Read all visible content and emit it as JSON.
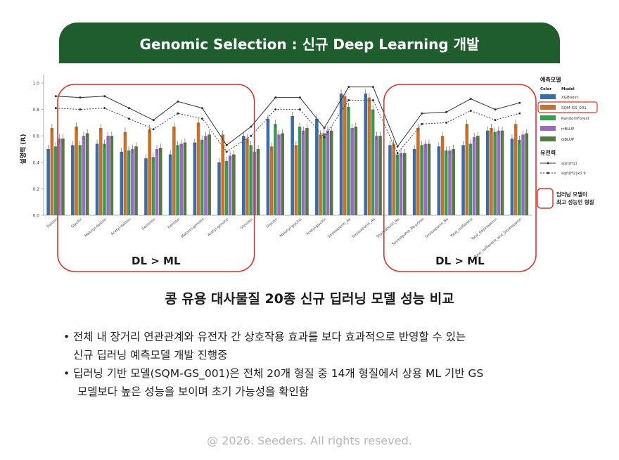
{
  "banner": {
    "title": "Genomic Selection : 신규 Deep Learning 개발"
  },
  "chart_data": {
    "type": "bar",
    "ylabel": "설명력 (R)",
    "ylim": [
      0.0,
      1.0
    ],
    "yticks": [
      "0.0",
      "0.2",
      "0.4",
      "0.6",
      "0.8",
      "1.0"
    ],
    "categories": [
      "Daidzin",
      "Glycitin",
      "Malonyl-daidzin",
      "Acetyl-daidzin",
      "Genistein",
      "Genistin",
      "Malonyl-genistin",
      "Acetyl-genistin",
      "Glycitein",
      "Glycitin",
      "Malonyl-glycitin",
      "Acetyl-glycitin",
      "Soyasaponin_Aa",
      "Soyasaponin_Ab",
      "Soyasaponin_Ba",
      "Soyasaponin_Bb-prime",
      "Soyasaponin_Bb",
      "Total_isoflavone",
      "Total_Soyasaponin",
      "Total_isoflavone_and_Soyasaponin"
    ],
    "series": [
      {
        "name": "XGBoost",
        "color": "#3a6ea5",
        "values": [
          0.5,
          0.53,
          0.54,
          0.48,
          0.43,
          0.46,
          0.55,
          0.4,
          0.6,
          0.73,
          0.75,
          0.73,
          0.92,
          0.92,
          0.53,
          0.5,
          0.52,
          0.53,
          0.64,
          0.58
        ]
      },
      {
        "name": "SQM-GS_001",
        "color": "#c8702e",
        "values": [
          0.66,
          0.67,
          0.66,
          0.63,
          0.65,
          0.67,
          0.7,
          0.61,
          0.58,
          0.52,
          0.53,
          0.61,
          0.9,
          0.89,
          0.54,
          0.66,
          0.6,
          0.69,
          0.66,
          0.69
        ]
      },
      {
        "name": "RandomForest",
        "color": "#3d9a55",
        "values": [
          0.52,
          0.53,
          0.54,
          0.49,
          0.44,
          0.53,
          0.57,
          0.41,
          0.53,
          0.69,
          0.67,
          0.62,
          0.82,
          0.8,
          0.46,
          0.53,
          0.49,
          0.54,
          0.63,
          0.57
        ]
      },
      {
        "name": "rrBLUP",
        "color": "#9b6bc4",
        "values": [
          0.58,
          0.6,
          0.6,
          0.5,
          0.5,
          0.54,
          0.6,
          0.45,
          0.48,
          0.61,
          0.64,
          0.64,
          0.66,
          0.6,
          0.47,
          0.54,
          0.49,
          0.59,
          0.64,
          0.61
        ]
      },
      {
        "name": "GBLUP",
        "color": "#557a48",
        "values": [
          0.58,
          0.62,
          0.6,
          0.52,
          0.51,
          0.55,
          0.61,
          0.46,
          0.5,
          0.62,
          0.66,
          0.64,
          0.67,
          0.6,
          0.47,
          0.54,
          0.5,
          0.6,
          0.64,
          0.62
        ]
      }
    ],
    "heritability": [
      {
        "name": "sqrt(H2)",
        "values": [
          0.9,
          0.89,
          0.9,
          0.81,
          0.72,
          0.86,
          0.81,
          0.53,
          0.67,
          0.89,
          0.89,
          0.66,
          0.97,
          0.97,
          0.52,
          0.77,
          0.78,
          0.88,
          0.8,
          0.85
        ]
      },
      {
        "name": "sqrt(H2)x0.9",
        "values": [
          0.81,
          0.8,
          0.81,
          0.73,
          0.65,
          0.77,
          0.73,
          0.48,
          0.6,
          0.8,
          0.8,
          0.59,
          0.87,
          0.87,
          0.47,
          0.69,
          0.7,
          0.79,
          0.72,
          0.77
        ]
      }
    ],
    "legend": {
      "title": "예측모델",
      "color_header": "Color",
      "model_header": "Model",
      "heritability_title": "유전력",
      "highlight_text_1": "딥러닝 모델이",
      "highlight_text_2": "최고 성능인 형질"
    },
    "annotations": {
      "left_box": "DL > ML",
      "right_box": "DL > ML"
    }
  },
  "caption": "콩 유용 대사물질 20종 신규 딥러닝 모델 성능 비교",
  "bullets": [
    {
      "line1": "전체 내 장거리 연관관계와 유전자 간 상호작용 효과를 보다 효과적으로 반영할 수 있는",
      "line2": "신규 딥러닝 예측모델 개발 진행중"
    },
    {
      "line1": "딥러닝 기반 모델(SQM-GS_001)은 전체 20개 형질 중 14개 형질에서 상용 ML 기반 GS",
      "line2": "모델보다 높은 성능을 보이며 초기 가능성을 확인함"
    }
  ],
  "footer": "@ 2026. Seeders. All rights reseved.",
  "bullet_symbol": "•"
}
